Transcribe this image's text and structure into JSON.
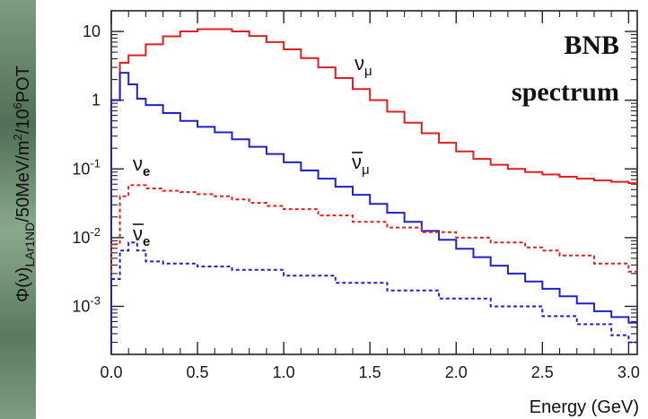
{
  "chart_data": {
    "type": "line",
    "title": "",
    "corner_text": [
      "BNB",
      "spectrum"
    ],
    "xlabel": "Energy (GeV)",
    "ylabel": "Φ(ν)LAr1ND/50MeV/m²/10⁶POT",
    "ylabel_parts": {
      "main": "Φ(ν)",
      "sub": "LAr1ND",
      "rest": "/50MeV/m",
      "sup2": "2",
      "rest2": "/10",
      "sup6": "6",
      "rest3": "POT"
    },
    "yscale": "log",
    "xlim": [
      0,
      3.05
    ],
    "ylim": [
      0.0002,
      20
    ],
    "xticks": [
      0.0,
      0.5,
      1.0,
      1.5,
      2.0,
      2.5,
      3.0
    ],
    "xtick_labels": [
      "0.0",
      "0.5",
      "1.0",
      "1.5",
      "2.0",
      "2.5",
      "3.0"
    ],
    "yticks": [
      0.001,
      0.01,
      0.1,
      1,
      10
    ],
    "ytick_labels": [
      {
        "base": "10",
        "sup": "-3"
      },
      {
        "base": "10",
        "sup": "-2"
      },
      {
        "base": "10",
        "sup": "-1"
      },
      {
        "base": "1",
        "sup": ""
      },
      {
        "base": "10",
        "sup": ""
      }
    ],
    "series": [
      {
        "name": "νμ",
        "label_main": "ν",
        "label_sub": "μ",
        "bar": false,
        "style": "solid",
        "color": "#e02020",
        "x": [
          0,
          0.05,
          0.1,
          0.2,
          0.3,
          0.4,
          0.5,
          0.6,
          0.7,
          0.8,
          0.9,
          1.0,
          1.1,
          1.2,
          1.3,
          1.4,
          1.5,
          1.6,
          1.7,
          1.8,
          1.9,
          2.0,
          2.1,
          2.2,
          2.3,
          2.4,
          2.5,
          2.6,
          2.7,
          2.8,
          2.9,
          3.0
        ],
        "y": [
          1.0,
          3.5,
          4.5,
          6.5,
          8.5,
          10.0,
          10.8,
          10.8,
          10.0,
          8.6,
          7.0,
          5.5,
          4.1,
          3.0,
          2.1,
          1.45,
          1.0,
          0.68,
          0.47,
          0.33,
          0.24,
          0.18,
          0.14,
          0.115,
          0.1,
          0.09,
          0.083,
          0.077,
          0.072,
          0.068,
          0.065,
          0.062
        ]
      },
      {
        "name": "ν̄μ",
        "label_main": "ν",
        "label_sub": "μ",
        "bar": true,
        "style": "solid",
        "color": "#2020cc",
        "x": [
          0,
          0.05,
          0.1,
          0.15,
          0.2,
          0.3,
          0.4,
          0.5,
          0.6,
          0.7,
          0.8,
          0.9,
          1.0,
          1.1,
          1.2,
          1.3,
          1.4,
          1.5,
          1.6,
          1.7,
          1.8,
          1.9,
          2.0,
          2.1,
          2.2,
          2.3,
          2.4,
          2.5,
          2.6,
          2.7,
          2.8,
          2.9,
          3.0
        ],
        "y": [
          1.0,
          2.5,
          1.7,
          1.05,
          0.85,
          0.65,
          0.5,
          0.41,
          0.34,
          0.27,
          0.21,
          0.165,
          0.125,
          0.095,
          0.072,
          0.055,
          0.042,
          0.031,
          0.023,
          0.017,
          0.0125,
          0.0093,
          0.0069,
          0.0052,
          0.0039,
          0.003,
          0.0023,
          0.0018,
          0.0014,
          0.0011,
          0.00085,
          0.0007,
          0.00058
        ]
      },
      {
        "name": "νe",
        "label_main": "ν",
        "label_sub": "e",
        "bar": false,
        "style": "dashed",
        "color": "#e02020",
        "x": [
          0,
          0.05,
          0.1,
          0.2,
          0.3,
          0.4,
          0.5,
          0.6,
          0.7,
          0.8,
          0.9,
          1.0,
          1.2,
          1.4,
          1.6,
          1.8,
          2.0,
          2.2,
          2.4,
          2.5,
          2.6,
          2.8,
          3.0
        ],
        "y": [
          0.008,
          0.04,
          0.058,
          0.052,
          0.048,
          0.046,
          0.043,
          0.04,
          0.036,
          0.032,
          0.029,
          0.026,
          0.021,
          0.017,
          0.014,
          0.012,
          0.01,
          0.0085,
          0.0072,
          0.0065,
          0.0055,
          0.0042,
          0.0032
        ]
      },
      {
        "name": "ν̄e",
        "label_main": "ν",
        "label_sub": "e",
        "bar": true,
        "style": "dashed",
        "color": "#2020cc",
        "x": [
          0,
          0.05,
          0.1,
          0.15,
          0.2,
          0.3,
          0.5,
          0.7,
          1.0,
          1.3,
          1.6,
          1.9,
          2.2,
          2.5,
          2.7,
          2.9,
          3.0
        ],
        "y": [
          0.0025,
          0.0065,
          0.0085,
          0.0065,
          0.0045,
          0.0042,
          0.0038,
          0.0034,
          0.0028,
          0.0022,
          0.0017,
          0.0013,
          0.001,
          0.00072,
          0.00055,
          0.00038,
          0.0003
        ]
      }
    ]
  }
}
